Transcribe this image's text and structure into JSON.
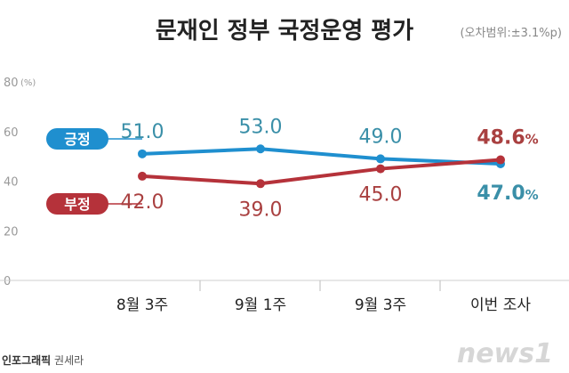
{
  "header": {
    "title": "문재인 정부 국정운영 평가",
    "margin_of_error": "(오차범위:±3.1%p)"
  },
  "chart_data": {
    "type": "line",
    "title": "문재인 정부 국정운영 평가",
    "categories": [
      "8월 3주",
      "9월 1주",
      "9월 3주",
      "이번 조사"
    ],
    "y_ticks": [
      "80",
      "60",
      "40",
      "20",
      "0"
    ],
    "y_unit": "(%)",
    "ylim": [
      0,
      80
    ],
    "grid": false,
    "series": [
      {
        "name": "긍정",
        "values": [
          51.0,
          53.0,
          49.0,
          47.0
        ],
        "labels": [
          "51.0",
          "53.0",
          "49.0",
          "47.0"
        ],
        "color": "#1f8fcf",
        "label_color": "#3a8fa8"
      },
      {
        "name": "부정",
        "values": [
          42.0,
          39.0,
          45.0,
          48.6
        ],
        "labels": [
          "42.0",
          "39.0",
          "45.0",
          "48.6"
        ],
        "color": "#b5323a",
        "label_color": "#a94040"
      }
    ],
    "percent_sign": "%"
  },
  "footer": {
    "source_strong": "인포그래픽",
    "source_author": "권세라",
    "logo": "news1"
  }
}
